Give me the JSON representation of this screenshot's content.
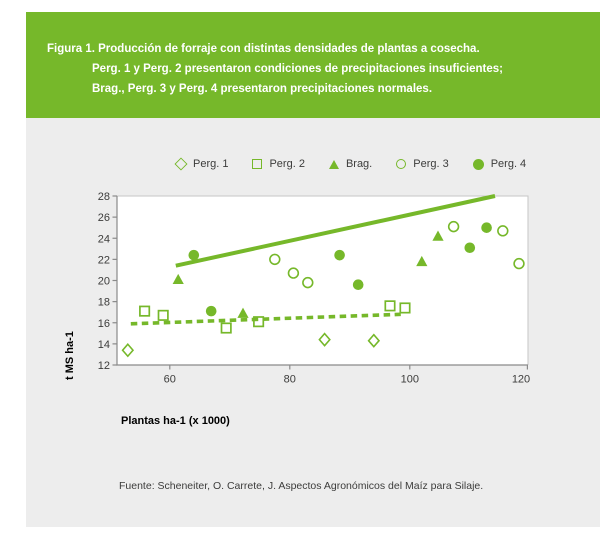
{
  "figure": {
    "caption_lines": [
      "Figura 1. Producción de forraje con distintas densidades de plantas a cosecha.",
      "Perg. 1 y Perg. 2 presentaron condiciones de precipitaciones insuficientes;",
      "Brag., Perg. 3 y Perg. 4 presentaron precipitaciones normales."
    ]
  },
  "colors": {
    "accent_green": "#76b82a",
    "panel_gray": "#ededed",
    "plot_background": "#ffffff",
    "axis_gray": "#8a8a8a",
    "plot_border_light": "#c6c6c6",
    "text_dark": "#3c3c3b"
  },
  "chart_data": {
    "type": "scatter",
    "xlabel": "Plantas ha-1 (x 1000)",
    "ylabel": "t MS ha-1",
    "xlim": [
      51.2,
      119.7
    ],
    "ylim": [
      12,
      28
    ],
    "x_ticks": [
      60,
      80,
      100,
      120
    ],
    "y_ticks": [
      12,
      14,
      16,
      18,
      20,
      22,
      24,
      26,
      28
    ],
    "grid": false,
    "legend_position": "top",
    "series": [
      {
        "name": "Perg. 1",
        "marker": "diamond-open",
        "points": [
          [
            53.0,
            13.4
          ],
          [
            85.8,
            14.4
          ],
          [
            94.0,
            14.3
          ]
        ]
      },
      {
        "name": "Perg. 2",
        "marker": "square-open",
        "points": [
          [
            55.8,
            17.1
          ],
          [
            58.9,
            16.7
          ],
          [
            69.4,
            15.5
          ],
          [
            74.8,
            16.1
          ],
          [
            96.7,
            17.6
          ],
          [
            99.2,
            17.4
          ]
        ]
      },
      {
        "name": "Brag.",
        "marker": "triangle-filled",
        "points": [
          [
            61.4,
            20.1
          ],
          [
            72.2,
            16.9
          ],
          [
            102.0,
            21.8
          ],
          [
            104.7,
            24.2
          ]
        ]
      },
      {
        "name": "Perg. 3",
        "marker": "circle-open",
        "points": [
          [
            77.5,
            22.0
          ],
          [
            80.6,
            20.7
          ],
          [
            83.0,
            19.8
          ],
          [
            107.3,
            25.1
          ],
          [
            115.5,
            24.7
          ],
          [
            118.2,
            21.6
          ]
        ]
      },
      {
        "name": "Perg. 4",
        "marker": "circle-filled",
        "points": [
          [
            64.0,
            22.4
          ],
          [
            66.9,
            17.1
          ],
          [
            88.3,
            22.4
          ],
          [
            91.4,
            19.6
          ],
          [
            110.0,
            23.1
          ],
          [
            112.8,
            25.0
          ]
        ]
      }
    ],
    "trend_lines": [
      {
        "style": "solid",
        "from": [
          61.0,
          21.4
        ],
        "to": [
          114.2,
          28.0
        ]
      },
      {
        "style": "dashed",
        "from": [
          53.5,
          15.9
        ],
        "to": [
          98.5,
          16.8
        ]
      }
    ]
  },
  "source_note": "Fuente: Scheneiter, O. Carrete, J. Aspectos Agronómicos del Maíz para Silaje."
}
